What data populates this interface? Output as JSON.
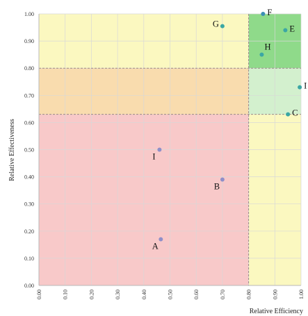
{
  "chart_data": {
    "type": "scatter",
    "xlabel": "Relative Efficiency",
    "ylabel": "Relative Effectiveness",
    "xlim": [
      0,
      1
    ],
    "ylim": [
      0,
      1
    ],
    "grid": true,
    "x_ticks": [
      "0.00",
      "0.10",
      "0.20",
      "0.30",
      "0.40",
      "0.50",
      "0.60",
      "0.70",
      "0.80",
      "0.90",
      "1.00"
    ],
    "y_ticks": [
      "0.00",
      "0.10",
      "0.20",
      "0.30",
      "0.40",
      "0.50",
      "0.60",
      "0.70",
      "0.80",
      "0.90",
      "1.00"
    ],
    "regions": [
      {
        "x": [
          0,
          0.8
        ],
        "y": [
          0,
          0.63
        ],
        "color": "#f8c9c9"
      },
      {
        "x": [
          0,
          0.8
        ],
        "y": [
          0.63,
          0.8
        ],
        "color": "#f9dcae"
      },
      {
        "x": [
          0,
          0.8
        ],
        "y": [
          0.8,
          1.0
        ],
        "color": "#fbf8c0"
      },
      {
        "x": [
          0.8,
          1.0
        ],
        "y": [
          0,
          0.63
        ],
        "color": "#fbf8c0"
      },
      {
        "x": [
          0.8,
          1.0
        ],
        "y": [
          0.63,
          0.8
        ],
        "color": "#d3f0ce"
      },
      {
        "x": [
          0.8,
          1.0
        ],
        "y": [
          0.8,
          1.0
        ],
        "color": "#8fda8a"
      }
    ],
    "threshold_lines": {
      "x": [
        0.8
      ],
      "y": [
        0.63,
        0.8
      ]
    },
    "points": [
      {
        "label": "A",
        "x": 0.465,
        "y": 0.17,
        "color": "#8f8fc9",
        "label_pos": "below-left"
      },
      {
        "label": "B",
        "x": 0.7,
        "y": 0.39,
        "color": "#8f8fc9",
        "label_pos": "below-left"
      },
      {
        "label": "I",
        "x": 0.46,
        "y": 0.5,
        "color": "#8f8fc9",
        "label_pos": "below-left"
      },
      {
        "label": "C",
        "x": 0.95,
        "y": 0.63,
        "color": "#3ba7a4",
        "label_pos": "right"
      },
      {
        "label": "I",
        "x": 0.995,
        "y": 0.73,
        "color": "#3ba7a4",
        "label_pos": "right"
      },
      {
        "label": "H",
        "x": 0.85,
        "y": 0.85,
        "color": "#3ba7a4",
        "label_pos": "above-right"
      },
      {
        "label": "E",
        "x": 0.94,
        "y": 0.94,
        "color": "#3ba7a4",
        "label_pos": "right"
      },
      {
        "label": "F",
        "x": 0.855,
        "y": 1.0,
        "color": "#3b8fb4",
        "label_pos": "right"
      },
      {
        "label": "G",
        "x": 0.7,
        "y": 0.955,
        "color": "#3ba7a4",
        "label_pos": "left"
      }
    ]
  }
}
